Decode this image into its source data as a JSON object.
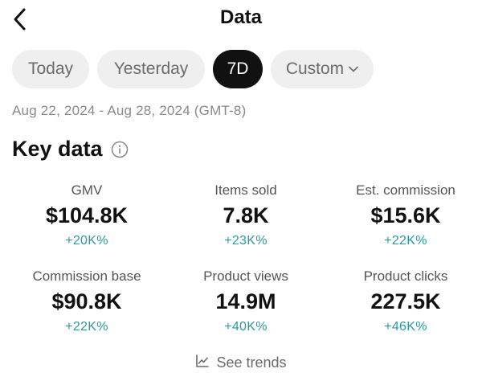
{
  "header": {
    "title": "Data",
    "back_icon": "chevron-left-icon"
  },
  "tabs": [
    {
      "label": "Today",
      "selected": false
    },
    {
      "label": "Yesterday",
      "selected": false
    },
    {
      "label": "7D",
      "selected": true
    },
    {
      "label": "Custom",
      "selected": false,
      "icon": "chevron-down-icon"
    }
  ],
  "date_range": "Aug 22, 2024 - Aug 28, 2024 (GMT-8)",
  "key_data": {
    "title": "Key data",
    "info_icon": "info-icon",
    "metrics": [
      {
        "label": "GMV",
        "value": "$104.8K",
        "delta": "+20K%"
      },
      {
        "label": "Items sold",
        "value": "7.8K",
        "delta": "+23K%"
      },
      {
        "label": "Est. commission",
        "value": "$15.6K",
        "delta": "+22K%"
      },
      {
        "label": "Commission base",
        "value": "$90.8K",
        "delta": "+22K%"
      },
      {
        "label": "Product views",
        "value": "14.9M",
        "delta": "+40K%"
      },
      {
        "label": "Product clicks",
        "value": "227.5K",
        "delta": "+46K%"
      }
    ]
  },
  "trends_link": {
    "label": "See trends",
    "icon": "line-chart-icon"
  },
  "colors": {
    "accent": "#111111",
    "delta": "#2a9aa2",
    "muted": "#8a8a8a",
    "tab_bg": "#efefef"
  }
}
